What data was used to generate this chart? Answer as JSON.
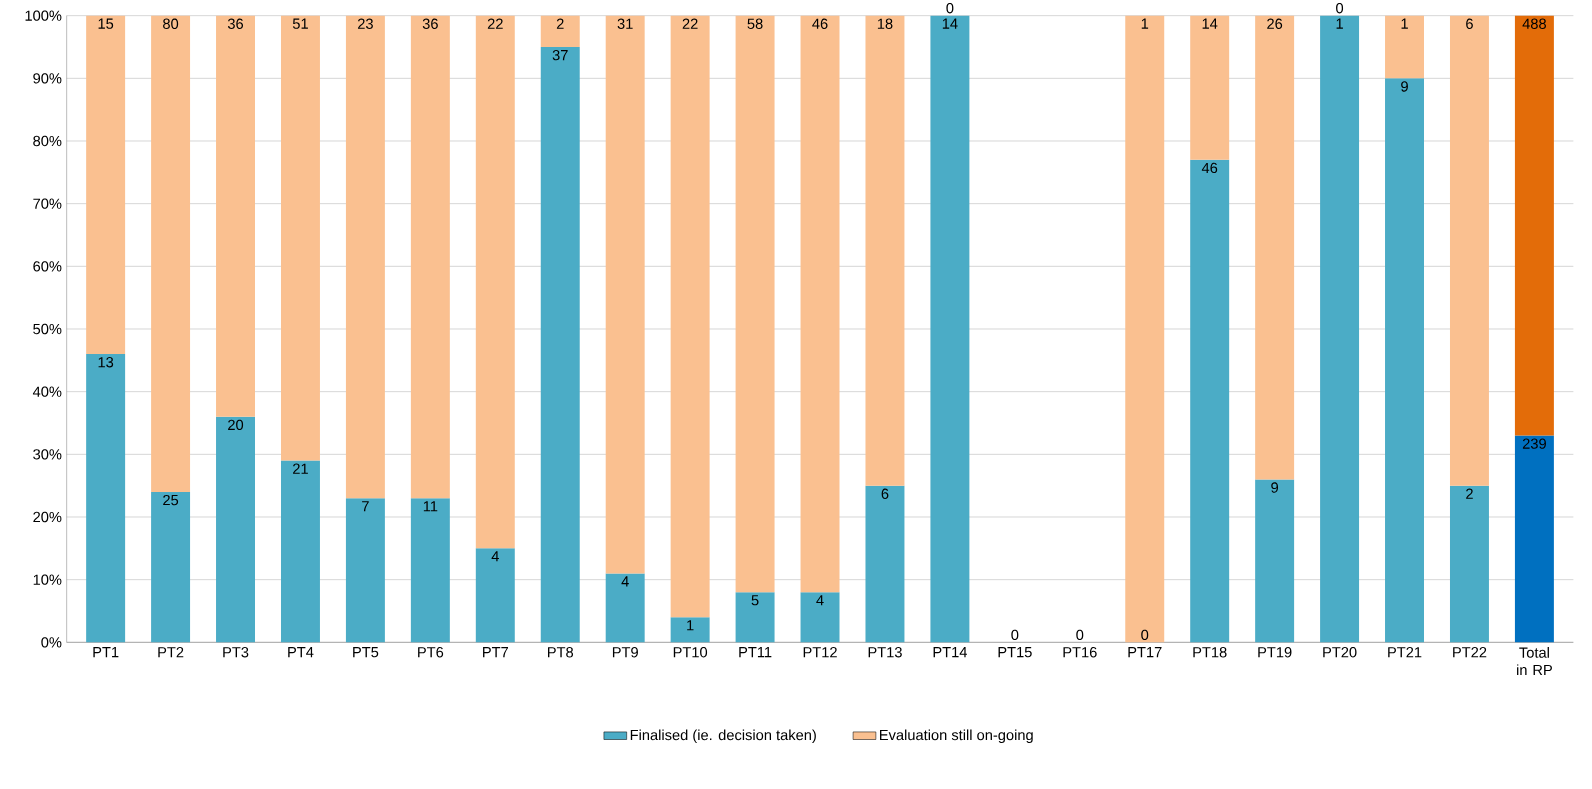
{
  "chart_data": {
    "type": "bar",
    "stacked": true,
    "categories": [
      "PT1",
      "PT2",
      "PT3",
      "PT4",
      "PT5",
      "PT6",
      "PT7",
      "PT8",
      "PT9",
      "PT10",
      "PT11",
      "PT12",
      "PT13",
      "PT14",
      "PT15",
      "PT16",
      "PT17",
      "PT18",
      "PT19",
      "PT20",
      "PT21",
      "PT22",
      "Total in RP"
    ],
    "series": [
      {
        "name": "Finalised (ie. decision taken)",
        "color": "#4bacc6",
        "colors": [
          "#4bacc6",
          "#4bacc6",
          "#4bacc6",
          "#4bacc6",
          "#4bacc6",
          "#4bacc6",
          "#4bacc6",
          "#4bacc6",
          "#4bacc6",
          "#4bacc6",
          "#4bacc6",
          "#4bacc6",
          "#4bacc6",
          "#4bacc6",
          "#4bacc6",
          "#4bacc6",
          "#4bacc6",
          "#4bacc6",
          "#4bacc6",
          "#4bacc6",
          "#4bacc6",
          "#4bacc6",
          "#0070c0"
        ],
        "values": [
          46,
          24,
          36,
          29,
          23,
          23,
          15,
          95,
          11,
          4,
          8,
          8,
          25,
          100,
          0,
          0,
          0,
          77,
          26,
          100,
          90,
          25,
          33
        ]
      },
      {
        "name": "Evaluation still on-going",
        "color": "#fac090",
        "colors": [
          "#fac090",
          "#fac090",
          "#fac090",
          "#fac090",
          "#fac090",
          "#fac090",
          "#fac090",
          "#fac090",
          "#fac090",
          "#fac090",
          "#fac090",
          "#fac090",
          "#fac090",
          "#fac090",
          "#fac090",
          "#fac090",
          "#fac090",
          "#fac090",
          "#fac090",
          "#fac090",
          "#fac090",
          "#fac090",
          "#e36c09"
        ],
        "values": [
          54,
          76,
          64,
          71,
          77,
          77,
          85,
          5,
          89,
          96,
          92,
          92,
          75,
          0,
          0,
          0,
          100,
          23,
          74,
          0,
          10,
          75,
          67
        ]
      }
    ],
    "annotations": [
      {
        "text": "13",
        "x": "PT1",
        "y": 46
      },
      {
        "text": "15",
        "x": "PT1",
        "y": 100
      },
      {
        "text": "25",
        "x": "PT2",
        "y": 24
      },
      {
        "text": "80",
        "x": "PT2",
        "y": 100
      },
      {
        "text": "20",
        "x": "PT3",
        "y": 36
      },
      {
        "text": "36",
        "x": "PT3",
        "y": 100
      },
      {
        "text": "21",
        "x": "PT4",
        "y": 29
      },
      {
        "text": "51",
        "x": "PT4",
        "y": 100
      },
      {
        "text": "7",
        "x": "PT5",
        "y": 23
      },
      {
        "text": "23",
        "x": "PT5",
        "y": 100
      },
      {
        "text": "11",
        "x": "PT6",
        "y": 23
      },
      {
        "text": "36",
        "x": "PT6",
        "y": 100
      },
      {
        "text": "4",
        "x": "PT7",
        "y": 15
      },
      {
        "text": "22",
        "x": "PT7",
        "y": 100
      },
      {
        "text": "37",
        "x": "PT8",
        "y": 95
      },
      {
        "text": "2",
        "x": "PT8",
        "y": 100
      },
      {
        "text": "4",
        "x": "PT9",
        "y": 11
      },
      {
        "text": "31",
        "x": "PT9",
        "y": 100
      },
      {
        "text": "1",
        "x": "PT10",
        "y": 4
      },
      {
        "text": "22",
        "x": "PT10",
        "y": 100
      },
      {
        "text": "5",
        "x": "PT11",
        "y": 8
      },
      {
        "text": "58",
        "x": "PT11",
        "y": 100
      },
      {
        "text": "4",
        "x": "PT12",
        "y": 8
      },
      {
        "text": "46",
        "x": "PT12",
        "y": 100
      },
      {
        "text": "6",
        "x": "PT13",
        "y": 25
      },
      {
        "text": "18",
        "x": "PT13",
        "y": 100
      },
      {
        "text": "14",
        "x": "PT14",
        "y": 100
      },
      {
        "text": "0",
        "x": "PT14",
        "y": 100
      },
      {
        "text": "0",
        "x": "PT15",
        "y": 0
      },
      {
        "text": "0",
        "x": "PT16",
        "y": 0
      },
      {
        "text": "0",
        "x": "PT17",
        "y": 0
      },
      {
        "text": "1",
        "x": "PT17",
        "y": 100
      },
      {
        "text": "46",
        "x": "PT18",
        "y": 77
      },
      {
        "text": "14",
        "x": "PT18",
        "y": 100
      },
      {
        "text": "9",
        "x": "PT19",
        "y": 26
      },
      {
        "text": "26",
        "x": "PT19",
        "y": 100
      },
      {
        "text": "1",
        "x": "PT20",
        "y": 100
      },
      {
        "text": "0",
        "x": "PT20",
        "y": 100
      },
      {
        "text": "9",
        "x": "PT21",
        "y": 90
      },
      {
        "text": "1",
        "x": "PT21",
        "y": 100
      },
      {
        "text": "2",
        "x": "PT22",
        "y": 25
      },
      {
        "text": "6",
        "x": "PT22",
        "y": 100
      },
      {
        "text": "239",
        "x": "Total in RP",
        "y": 33
      },
      {
        "text": "488",
        "x": "Total in RP",
        "y": 100
      }
    ],
    "ylim": [
      0,
      100
    ],
    "yticks": [
      {
        "value": 0,
        "label": "0%"
      },
      {
        "value": 10,
        "label": "10%"
      },
      {
        "value": 20,
        "label": "20%"
      },
      {
        "value": 30,
        "label": "30%"
      },
      {
        "value": 40,
        "label": "40%"
      },
      {
        "value": 50,
        "label": "50%"
      },
      {
        "value": 60,
        "label": "60%"
      },
      {
        "value": 70,
        "label": "70%"
      },
      {
        "value": 80,
        "label": "80%"
      },
      {
        "value": 90,
        "label": "90%"
      },
      {
        "value": 100,
        "label": "100%"
      }
    ],
    "grid": "y",
    "legend": "bottom"
  }
}
